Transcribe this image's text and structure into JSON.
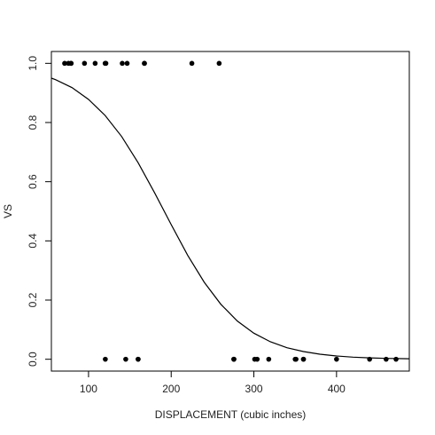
{
  "chart_data": {
    "type": "scatter",
    "x_label": "DISPLACEMENT (cubic inches)",
    "y_label": "VS",
    "xlim": [
      55.06,
      488.04
    ],
    "ylim": [
      -0.04,
      1.04
    ],
    "xticks": [
      100,
      200,
      300,
      400
    ],
    "yticks": [
      {
        "value": 0,
        "label": "0.0"
      },
      0.2,
      0.4,
      0.6,
      0.8,
      {
        "value": 1,
        "label": "1.0"
      }
    ],
    "color": "#000000",
    "points": {
      "x": [
        108,
        258,
        225,
        146.7,
        140.8,
        167.6,
        167.6,
        78.7,
        75.7,
        71.1,
        120.1,
        79,
        95.1,
        121,
        160,
        160,
        360,
        360,
        275.8,
        275.8,
        275.8,
        472,
        460,
        440,
        318,
        304,
        350,
        400,
        120.3,
        351,
        145,
        301
      ],
      "values": [
        1,
        1,
        1,
        1,
        1,
        1,
        1,
        1,
        1,
        1,
        1,
        1,
        1,
        1,
        0,
        0,
        0,
        0,
        0,
        0,
        0,
        0,
        0,
        0,
        0,
        0,
        0,
        0,
        0,
        0,
        0,
        0
      ]
    },
    "curve": {
      "x": [
        55,
        60,
        80,
        100,
        120,
        140,
        160,
        180,
        200,
        220,
        240,
        260,
        280,
        300,
        320,
        340,
        360,
        380,
        400,
        420,
        440,
        460,
        480,
        488
      ],
      "values": [
        0.95,
        0.945,
        0.918,
        0.878,
        0.824,
        0.753,
        0.664,
        0.562,
        0.455,
        0.351,
        0.26,
        0.186,
        0.129,
        0.088,
        0.059,
        0.039,
        0.026,
        0.017,
        0.011,
        0.0071,
        0.0047,
        0.003,
        0.002,
        0.0017
      ]
    }
  }
}
